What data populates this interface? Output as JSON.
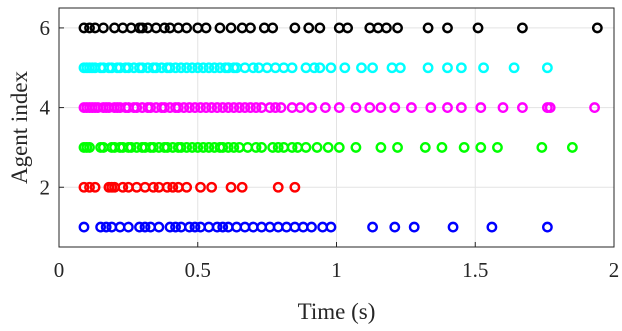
{
  "chart_data": {
    "type": "scatter",
    "xlabel": "Time (s)",
    "ylabel": "Agent index",
    "xlim": [
      0,
      2
    ],
    "ylim": [
      0.5,
      6.5
    ],
    "xticks": [
      0,
      0.5,
      1,
      1.5,
      2
    ],
    "xtick_labels": [
      "0",
      "0.5",
      "1",
      "1.5",
      "2"
    ],
    "yticks": [
      2,
      4,
      6
    ],
    "ytick_labels": [
      "2",
      "4",
      "6"
    ],
    "grid": true,
    "marker": "circle-open",
    "series": [
      {
        "color": "#0000ff",
        "y": 1,
        "x": [
          0.09,
          0.15,
          0.17,
          0.19,
          0.22,
          0.25,
          0.29,
          0.31,
          0.33,
          0.36,
          0.4,
          0.42,
          0.44,
          0.47,
          0.49,
          0.51,
          0.54,
          0.57,
          0.59,
          0.61,
          0.64,
          0.67,
          0.7,
          0.73,
          0.76,
          0.79,
          0.82,
          0.85,
          0.88,
          0.91,
          0.95,
          0.98,
          1.13,
          1.21,
          1.28,
          1.42,
          1.56,
          1.76
        ]
      },
      {
        "color": "#ff0000",
        "y": 2,
        "x": [
          0.09,
          0.11,
          0.13,
          0.18,
          0.19,
          0.2,
          0.23,
          0.25,
          0.28,
          0.31,
          0.34,
          0.36,
          0.39,
          0.41,
          0.43,
          0.46,
          0.51,
          0.55,
          0.62,
          0.66,
          0.79,
          0.85
        ]
      },
      {
        "color": "#00ff00",
        "y": 3,
        "x": [
          0.09,
          0.1,
          0.11,
          0.15,
          0.16,
          0.19,
          0.2,
          0.22,
          0.23,
          0.25,
          0.26,
          0.28,
          0.3,
          0.31,
          0.33,
          0.34,
          0.36,
          0.38,
          0.39,
          0.41,
          0.43,
          0.44,
          0.46,
          0.48,
          0.5,
          0.52,
          0.54,
          0.56,
          0.58,
          0.59,
          0.61,
          0.63,
          0.65,
          0.68,
          0.71,
          0.73,
          0.77,
          0.79,
          0.81,
          0.84,
          0.86,
          0.89,
          0.93,
          0.97,
          1.01,
          1.07,
          1.16,
          1.22,
          1.32,
          1.38,
          1.46,
          1.52,
          1.58,
          1.74,
          1.85
        ]
      },
      {
        "color": "#ff00ff",
        "y": 4,
        "x": [
          0.09,
          0.1,
          0.11,
          0.12,
          0.13,
          0.14,
          0.16,
          0.17,
          0.18,
          0.2,
          0.21,
          0.22,
          0.24,
          0.25,
          0.27,
          0.28,
          0.3,
          0.32,
          0.33,
          0.35,
          0.37,
          0.38,
          0.4,
          0.42,
          0.43,
          0.45,
          0.47,
          0.49,
          0.51,
          0.53,
          0.55,
          0.57,
          0.59,
          0.61,
          0.63,
          0.65,
          0.67,
          0.69,
          0.71,
          0.73,
          0.76,
          0.78,
          0.8,
          0.84,
          0.87,
          0.91,
          0.96,
          1.01,
          1.07,
          1.12,
          1.16,
          1.21,
          1.27,
          1.34,
          1.4,
          1.45,
          1.52,
          1.6,
          1.67,
          1.76,
          1.77,
          1.93
        ]
      },
      {
        "color": "#00ffff",
        "y": 5,
        "x": [
          0.09,
          0.1,
          0.11,
          0.12,
          0.13,
          0.15,
          0.16,
          0.18,
          0.19,
          0.21,
          0.22,
          0.24,
          0.25,
          0.27,
          0.29,
          0.3,
          0.32,
          0.34,
          0.35,
          0.37,
          0.39,
          0.4,
          0.42,
          0.44,
          0.46,
          0.48,
          0.5,
          0.52,
          0.54,
          0.56,
          0.58,
          0.6,
          0.61,
          0.63,
          0.64,
          0.67,
          0.7,
          0.72,
          0.75,
          0.78,
          0.81,
          0.84,
          0.89,
          0.92,
          0.94,
          0.98,
          1.03,
          1.09,
          1.13,
          1.2,
          1.23,
          1.33,
          1.4,
          1.45,
          1.53,
          1.64,
          1.76
        ]
      },
      {
        "color": "#000000",
        "y": 6,
        "x": [
          0.09,
          0.11,
          0.13,
          0.16,
          0.2,
          0.23,
          0.26,
          0.29,
          0.3,
          0.32,
          0.35,
          0.38,
          0.4,
          0.43,
          0.46,
          0.5,
          0.53,
          0.58,
          0.62,
          0.66,
          0.69,
          0.74,
          0.77,
          0.85,
          0.9,
          0.94,
          1.01,
          1.04,
          1.12,
          1.15,
          1.18,
          1.22,
          1.33,
          1.4,
          1.51,
          1.67,
          1.94
        ]
      }
    ]
  }
}
